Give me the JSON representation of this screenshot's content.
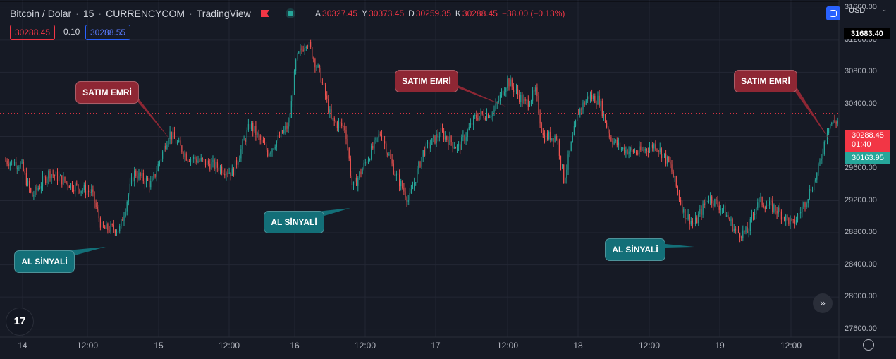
{
  "header": {
    "symbol": "Bitcoin / Dolar",
    "interval": "15",
    "exchange": "CURRENCYCOM",
    "source": "TradingView",
    "open_label": "A",
    "open": "30327.45",
    "high_label": "Y",
    "high": "30373.45",
    "low_label": "D",
    "low": "30259.35",
    "close_label": "K",
    "close": "30288.45",
    "change": "−38.00 (−0.13%)"
  },
  "quote": {
    "sell": "30288.45",
    "spread": "0.10",
    "buy": "30288.55"
  },
  "currency": "USD",
  "price_axis": {
    "top_label": "31683.40",
    "ticks": [
      "31600.00",
      "31200.00",
      "30800.00",
      "30400.00",
      "30000.00",
      "29600.00",
      "29200.00",
      "28800.00",
      "28400.00",
      "28000.00",
      "27600.00"
    ],
    "last_price": "30288.45",
    "countdown": "01:40",
    "second_price": "30163.95"
  },
  "time_axis": [
    "14",
    "12:00",
    "15",
    "12:00",
    "16",
    "12:00",
    "17",
    "12:00",
    "18",
    "12:00",
    "19",
    "12:00"
  ],
  "annotations": {
    "sell1": "SATIM EMRİ",
    "sell2": "SATIM EMRİ",
    "sell3": "SATIM EMRİ",
    "buy1": "AL SİNYALİ",
    "buy2": "AL SİNYALİ",
    "buy3": "AL SİNYALİ"
  },
  "colors": {
    "up": "#26a69a",
    "down": "#ef5350",
    "sell_note": "#8e2734",
    "buy_note": "#136f78",
    "background": "#161a25"
  },
  "chart_data": {
    "type": "candlestick",
    "title": "Bitcoin / Dolar · 15 · CURRENCYCOM",
    "y_range": [
      27500,
      31700
    ],
    "x": [
      "14",
      "14 12:00",
      "15",
      "15 12:00",
      "16",
      "16 12:00",
      "17",
      "17 12:00",
      "18",
      "18 12:00",
      "19",
      "19 12:00",
      "19 end"
    ],
    "y": [
      29700,
      29250,
      29700,
      29550,
      30500,
      29700,
      30200,
      30450,
      30300,
      29850,
      29200,
      29200,
      30000
    ]
  }
}
